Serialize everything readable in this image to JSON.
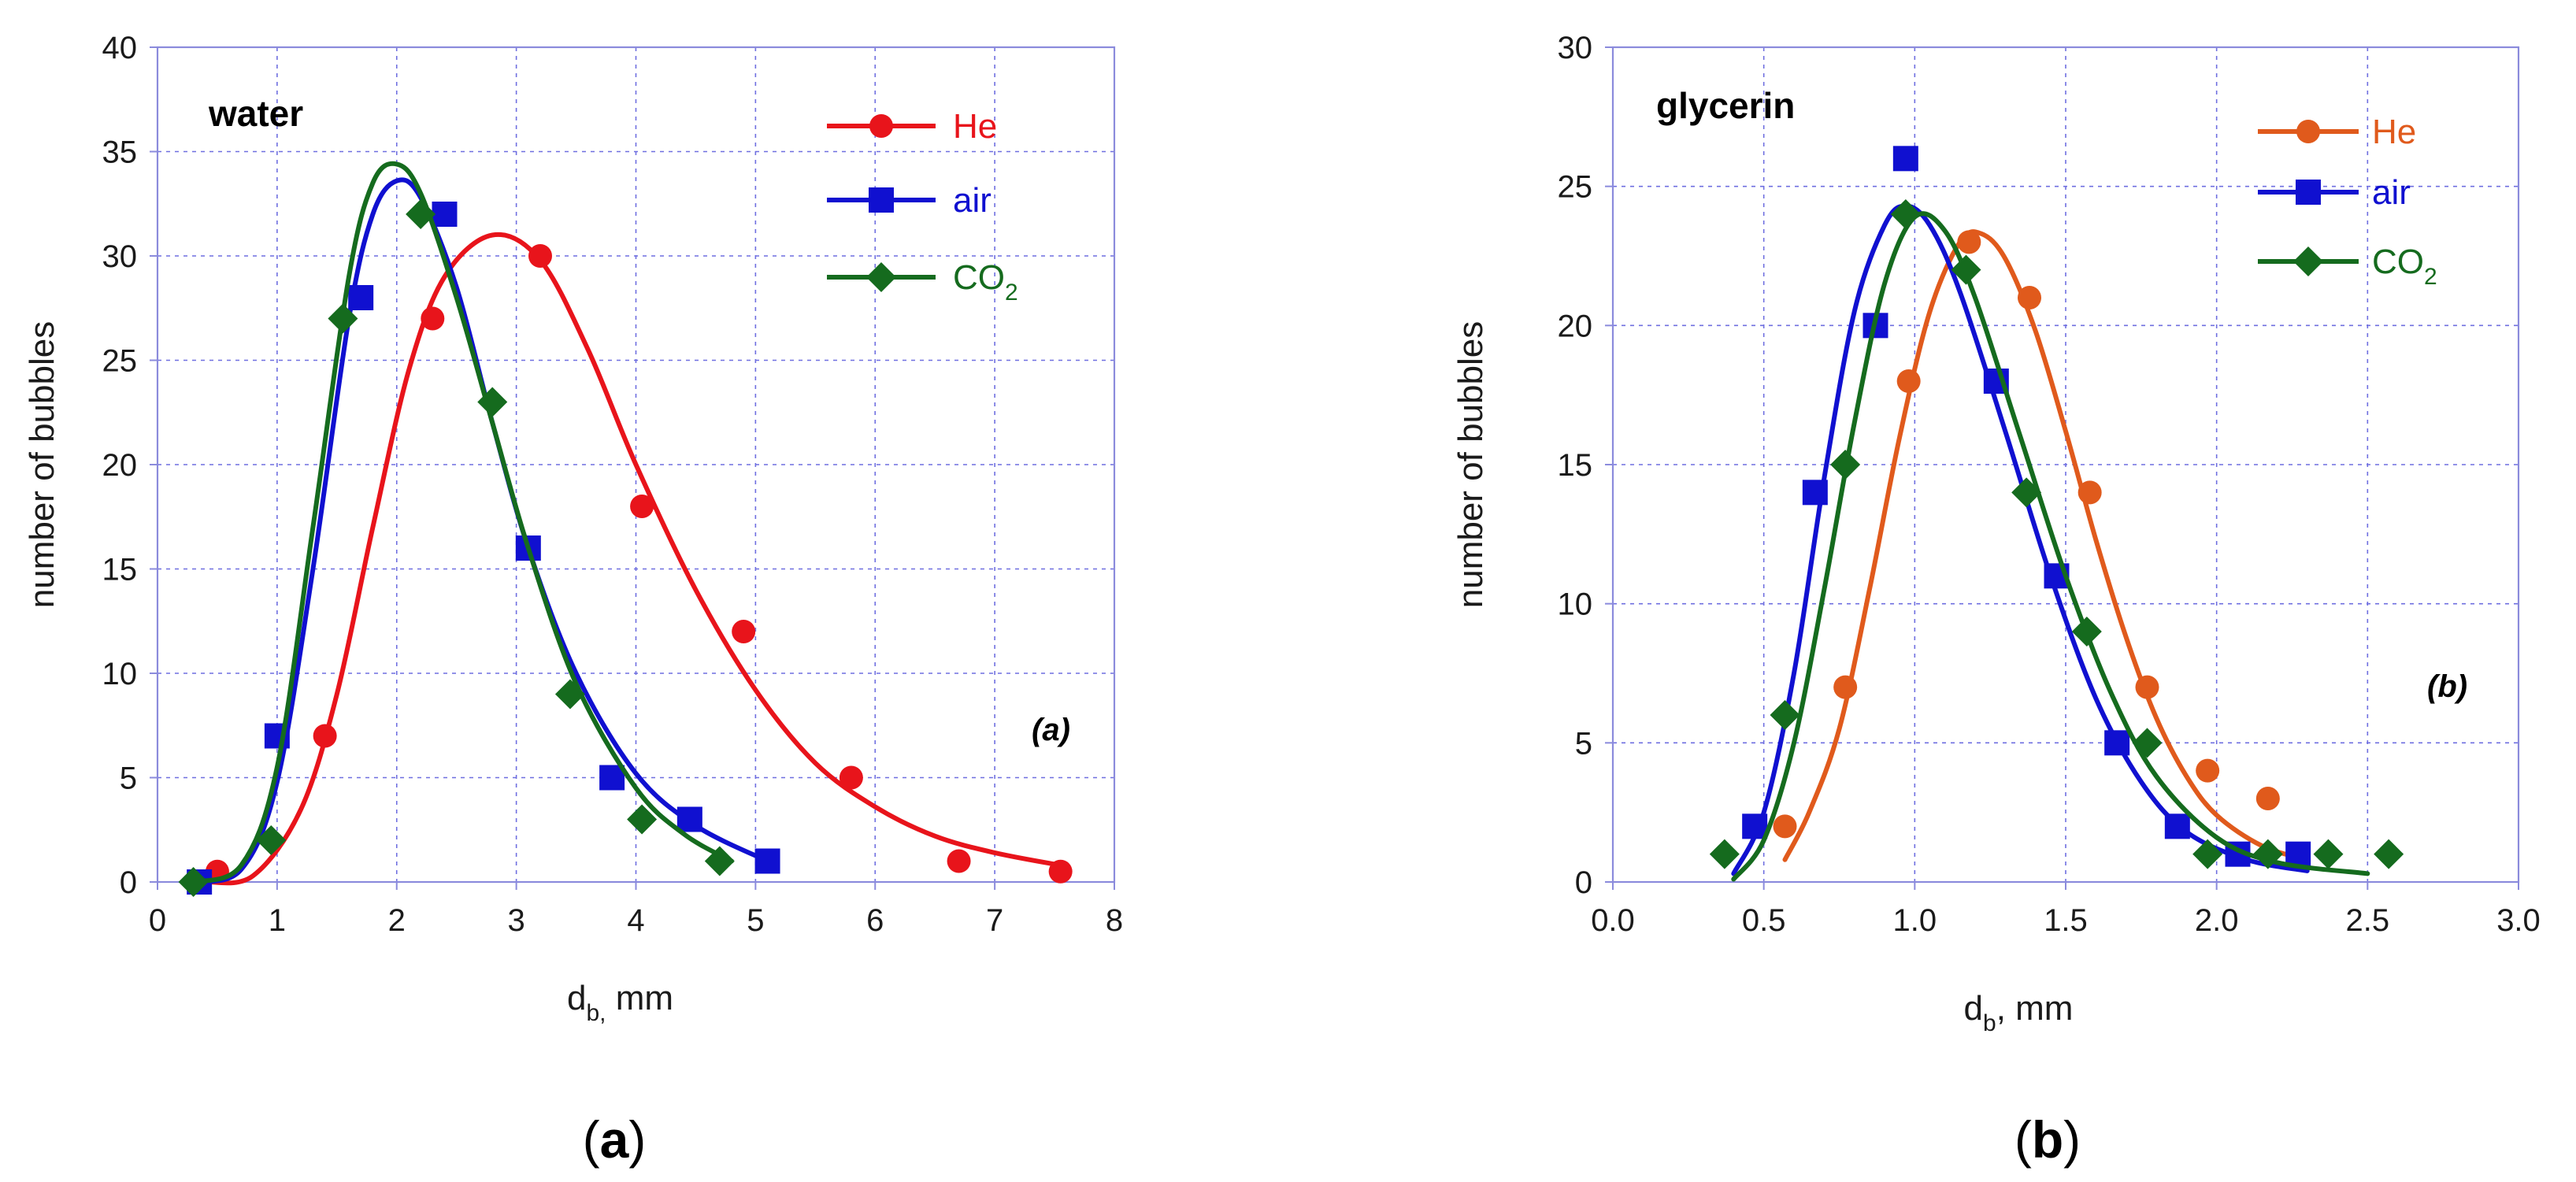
{
  "chart_data": [
    {
      "type": "scatter",
      "panel": "a",
      "title": "water",
      "xlabel": "d",
      "xlabel_sub": "b,",
      "xlabel_unit": "mm",
      "ylabel": "number of bubbles",
      "xlim": [
        0,
        8
      ],
      "ylim": [
        0,
        40
      ],
      "xticks": [
        0,
        1,
        2,
        3,
        4,
        5,
        6,
        7,
        8
      ],
      "yticks": [
        0,
        5,
        10,
        15,
        20,
        25,
        30,
        35,
        40
      ],
      "xtick_labels": [
        "0",
        "1",
        "2",
        "3",
        "4",
        "5",
        "6",
        "7",
        "8"
      ],
      "ytick_labels": [
        "0",
        "5",
        "10",
        "15",
        "20",
        "25",
        "30",
        "35",
        "40"
      ],
      "grid": true,
      "legend_position": "top-right",
      "tag": "(a)",
      "caption": {
        "open": "(",
        "letter": "a",
        "close": ")"
      },
      "series": [
        {
          "name": "He",
          "name_sub": "",
          "color": "#e8141b",
          "marker": "circle",
          "points": [
            [
              0.5,
              0.5
            ],
            [
              1.4,
              7
            ],
            [
              2.3,
              27
            ],
            [
              3.2,
              30
            ],
            [
              4.05,
              18
            ],
            [
              4.9,
              12
            ],
            [
              5.8,
              5
            ],
            [
              6.7,
              1
            ],
            [
              7.55,
              0.5
            ]
          ],
          "curve": [
            [
              0.4,
              0
            ],
            [
              0.8,
              0.3
            ],
            [
              1.2,
              3.5
            ],
            [
              1.5,
              9
            ],
            [
              1.8,
              17
            ],
            [
              2.1,
              24.5
            ],
            [
              2.4,
              29
            ],
            [
              2.8,
              31
            ],
            [
              3.2,
              29.8
            ],
            [
              3.6,
              25.5
            ],
            [
              4.0,
              20
            ],
            [
              4.5,
              14
            ],
            [
              5.0,
              9.2
            ],
            [
              5.5,
              5.7
            ],
            [
              6.0,
              3.6
            ],
            [
              6.5,
              2.2
            ],
            [
              7.0,
              1.4
            ],
            [
              7.55,
              0.8
            ]
          ]
        },
        {
          "name": "air",
          "name_sub": "",
          "color": "#1010d0",
          "marker": "square",
          "points": [
            [
              0.35,
              0
            ],
            [
              1.0,
              7
            ],
            [
              1.7,
              28
            ],
            [
              2.4,
              32
            ],
            [
              3.1,
              16
            ],
            [
              3.8,
              5
            ],
            [
              4.45,
              3
            ],
            [
              5.1,
              1
            ]
          ],
          "curve": [
            [
              0.3,
              0
            ],
            [
              0.7,
              0.6
            ],
            [
              1.0,
              4.8
            ],
            [
              1.3,
              15
            ],
            [
              1.6,
              27
            ],
            [
              1.8,
              32
            ],
            [
              2.0,
              33.6
            ],
            [
              2.2,
              32.8
            ],
            [
              2.5,
              28.5
            ],
            [
              2.8,
              22
            ],
            [
              3.1,
              16
            ],
            [
              3.5,
              10
            ],
            [
              4.0,
              5.2
            ],
            [
              4.5,
              2.7
            ],
            [
              5.1,
              1
            ]
          ]
        },
        {
          "name": "CO",
          "name_sub": "2",
          "color": "#156b1e",
          "marker": "diamond",
          "points": [
            [
              0.3,
              0
            ],
            [
              0.95,
              2
            ],
            [
              1.55,
              27
            ],
            [
              2.2,
              32
            ],
            [
              2.8,
              23
            ],
            [
              3.45,
              9
            ],
            [
              4.05,
              3
            ],
            [
              4.7,
              1
            ]
          ],
          "curve": [
            [
              0.3,
              0
            ],
            [
              0.7,
              0.8
            ],
            [
              1.0,
              5.5
            ],
            [
              1.3,
              17
            ],
            [
              1.6,
              29
            ],
            [
              1.8,
              33.5
            ],
            [
              2.0,
              34.4
            ],
            [
              2.2,
              33
            ],
            [
              2.5,
              28
            ],
            [
              2.8,
              22
            ],
            [
              3.1,
              16
            ],
            [
              3.5,
              9.5
            ],
            [
              4.0,
              4.5
            ],
            [
              4.4,
              2.3
            ],
            [
              4.8,
              1
            ]
          ]
        }
      ]
    },
    {
      "type": "scatter",
      "panel": "b",
      "title": "glycerin",
      "xlabel": "d",
      "xlabel_sub": "b",
      "xlabel_unit": ", mm",
      "ylabel": "number of bubbles",
      "xlim": [
        0.0,
        3.0
      ],
      "ylim": [
        0,
        30
      ],
      "xticks": [
        0.0,
        0.5,
        1.0,
        1.5,
        2.0,
        2.5,
        3.0
      ],
      "yticks": [
        0,
        5,
        10,
        15,
        20,
        25,
        30
      ],
      "xtick_labels": [
        "0.0",
        "0.5",
        "1.0",
        "1.5",
        "2.0",
        "2.5",
        "3.0"
      ],
      "ytick_labels": [
        "0",
        "5",
        "10",
        "15",
        "20",
        "25",
        "30"
      ],
      "grid": true,
      "legend_position": "top-right",
      "tag": "(b)",
      "caption": {
        "open": "(",
        "letter": "b",
        "close": ")"
      },
      "series": [
        {
          "name": "He",
          "name_sub": "",
          "color": "#e05a1c",
          "marker": "circle",
          "points": [
            [
              0.57,
              2
            ],
            [
              0.77,
              7
            ],
            [
              0.98,
              18
            ],
            [
              1.18,
              23
            ],
            [
              1.38,
              21
            ],
            [
              1.58,
              14
            ],
            [
              1.77,
              7
            ],
            [
              1.97,
              4
            ],
            [
              2.17,
              3
            ],
            [
              2.27,
              1
            ]
          ],
          "curve": [
            [
              0.57,
              0.8
            ],
            [
              0.65,
              2.5
            ],
            [
              0.75,
              5.5
            ],
            [
              0.85,
              10.5
            ],
            [
              0.95,
              16
            ],
            [
              1.05,
              20.5
            ],
            [
              1.15,
              23
            ],
            [
              1.22,
              23.3
            ],
            [
              1.3,
              22.4
            ],
            [
              1.4,
              19.8
            ],
            [
              1.5,
              16.2
            ],
            [
              1.6,
              12.3
            ],
            [
              1.7,
              8.8
            ],
            [
              1.8,
              5.9
            ],
            [
              1.9,
              3.8
            ],
            [
              2.0,
              2.4
            ],
            [
              2.15,
              1.3
            ],
            [
              2.3,
              0.8
            ]
          ]
        },
        {
          "name": "air",
          "name_sub": "",
          "color": "#1010d0",
          "marker": "square",
          "points": [
            [
              0.47,
              2
            ],
            [
              0.67,
              14
            ],
            [
              0.87,
              20
            ],
            [
              0.97,
              26
            ],
            [
              1.27,
              18
            ],
            [
              1.47,
              11
            ],
            [
              1.67,
              5
            ],
            [
              1.87,
              2
            ],
            [
              2.07,
              1
            ],
            [
              2.27,
              1
            ]
          ],
          "curve": [
            [
              0.4,
              0.3
            ],
            [
              0.5,
              2.5
            ],
            [
              0.6,
              7.5
            ],
            [
              0.7,
              14.5
            ],
            [
              0.8,
              20.5
            ],
            [
              0.9,
              23.6
            ],
            [
              0.97,
              24.3
            ],
            [
              1.05,
              23.6
            ],
            [
              1.15,
              21.2
            ],
            [
              1.3,
              16.2
            ],
            [
              1.45,
              11
            ],
            [
              1.6,
              6.6
            ],
            [
              1.75,
              3.6
            ],
            [
              1.9,
              1.8
            ],
            [
              2.1,
              0.8
            ],
            [
              2.3,
              0.4
            ]
          ]
        },
        {
          "name": "CO",
          "name_sub": "2",
          "color": "#156b1e",
          "marker": "diamond",
          "points": [
            [
              0.37,
              1
            ],
            [
              0.57,
              6
            ],
            [
              0.77,
              15
            ],
            [
              0.97,
              24
            ],
            [
              1.17,
              22
            ],
            [
              1.37,
              14
            ],
            [
              1.57,
              9
            ],
            [
              1.77,
              5
            ],
            [
              1.97,
              1
            ],
            [
              2.17,
              1
            ],
            [
              2.37,
              1
            ],
            [
              2.57,
              1
            ]
          ],
          "curve": [
            [
              0.4,
              0.1
            ],
            [
              0.5,
              1.5
            ],
            [
              0.6,
              5
            ],
            [
              0.7,
              10.5
            ],
            [
              0.8,
              16.5
            ],
            [
              0.9,
              21.5
            ],
            [
              1.0,
              23.9
            ],
            [
              1.1,
              23.4
            ],
            [
              1.2,
              21
            ],
            [
              1.35,
              16
            ],
            [
              1.5,
              11
            ],
            [
              1.65,
              6.8
            ],
            [
              1.8,
              3.8
            ],
            [
              2.0,
              1.6
            ],
            [
              2.2,
              0.7
            ],
            [
              2.5,
              0.3
            ]
          ]
        }
      ]
    }
  ]
}
